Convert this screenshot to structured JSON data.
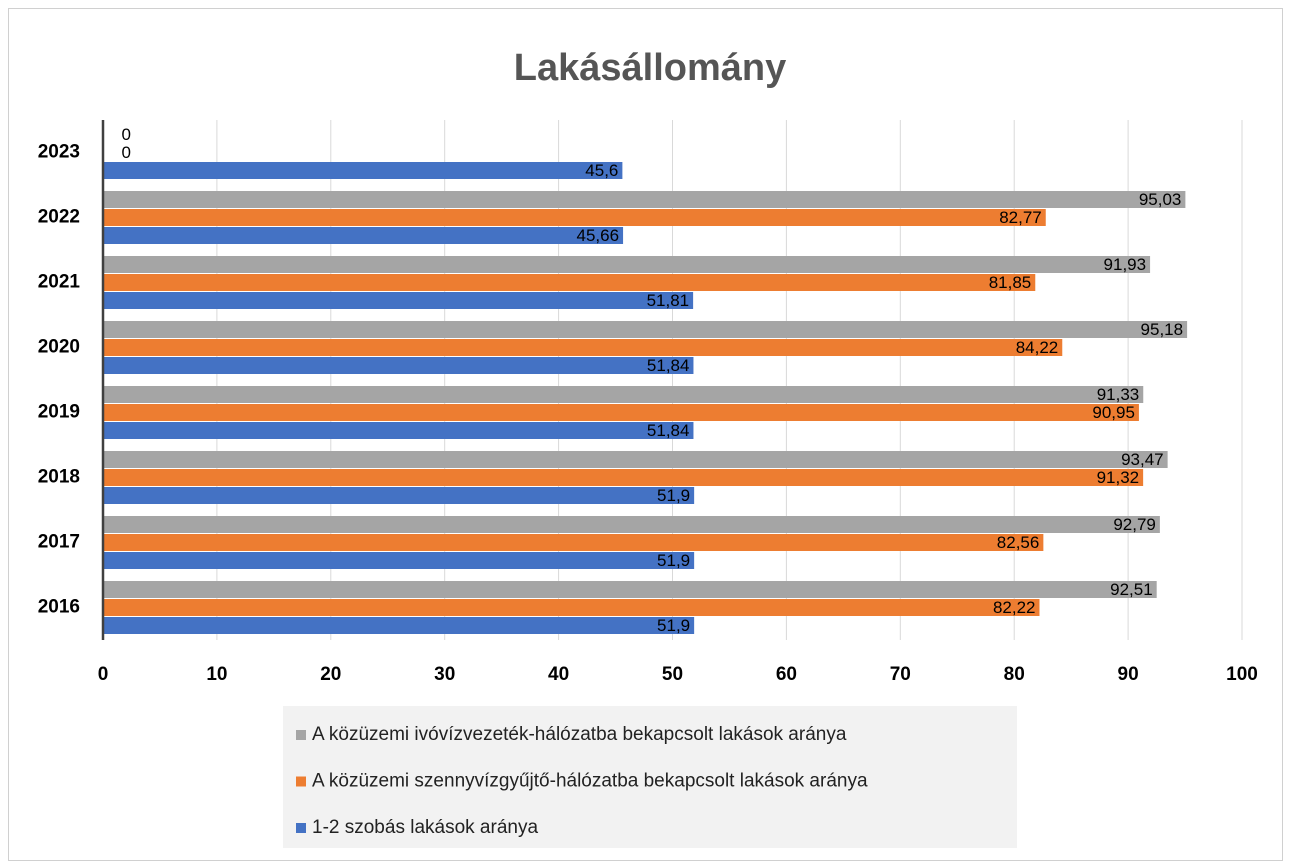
{
  "chart_data": {
    "type": "barh",
    "title": "Lakásállomány",
    "categories": [
      "2016",
      "2017",
      "2018",
      "2019",
      "2020",
      "2021",
      "2022",
      "2023"
    ],
    "series": [
      {
        "name": "A közüzemi ivóvízvezeték-hálózatba bekapcsolt lakások aránya",
        "color": "#a5a5a5",
        "values": [
          92.51,
          92.79,
          93.47,
          91.33,
          95.18,
          91.93,
          95.03,
          0
        ],
        "value_labels": [
          "92,51",
          "92,79",
          "93,47",
          "91,33",
          "95,18",
          "91,93",
          "95,03",
          "0"
        ]
      },
      {
        "name": "A közüzemi szennyvízgyűjtő-hálózatba bekapcsolt lakások aránya",
        "color": "#ed7d31",
        "values": [
          82.22,
          82.56,
          91.32,
          90.95,
          84.22,
          81.85,
          82.77,
          0
        ],
        "value_labels": [
          "82,22",
          "82,56",
          "91,32",
          "90,95",
          "84,22",
          "81,85",
          "82,77",
          "0"
        ]
      },
      {
        "name": "1-2 szobás lakások aránya",
        "color": "#4472c4",
        "values": [
          51.9,
          51.9,
          51.9,
          51.84,
          51.84,
          51.81,
          45.66,
          45.6
        ],
        "value_labels": [
          "51,9",
          "51,9",
          "51,9",
          "51,84",
          "51,84",
          "51,81",
          "45,66",
          "45,6"
        ]
      }
    ],
    "xlim": [
      0,
      100
    ],
    "xticks": [
      0,
      10,
      20,
      30,
      40,
      50,
      60,
      70,
      80,
      90,
      100
    ],
    "grid": true
  }
}
